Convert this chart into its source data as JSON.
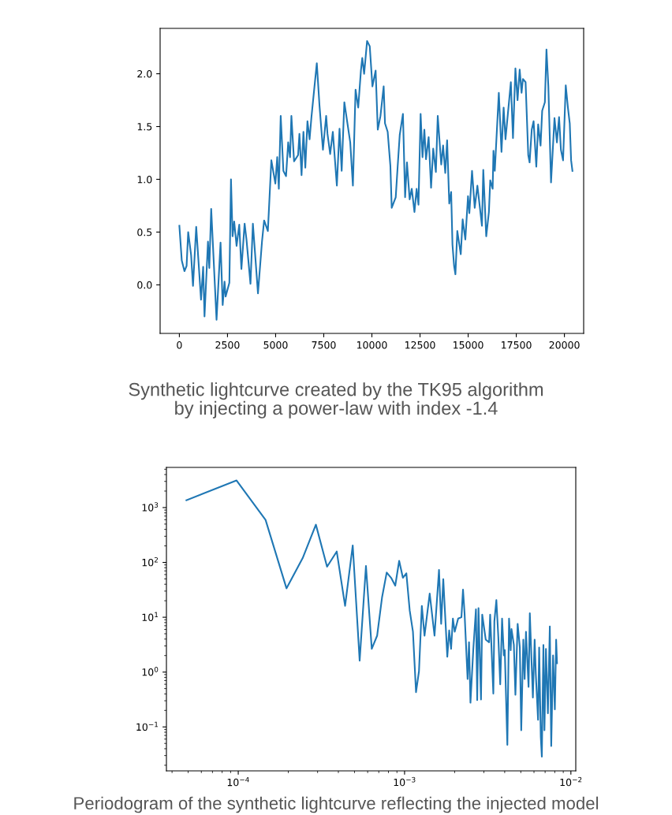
{
  "chart_data": [
    {
      "type": "line",
      "color": "#1f77b4",
      "x": [
        0,
        125,
        264,
        375,
        458,
        611,
        708,
        875,
        1125,
        1236,
        1306,
        1486,
        1556,
        1653,
        1931,
        2139,
        2250,
        2347,
        2403,
        2597,
        2681,
        2764,
        2847,
        2972,
        3111,
        3222,
        3389,
        3486,
        3694,
        3819,
        4083,
        4292,
        4403,
        4597,
        4778,
        4986,
        5083,
        5167,
        5264,
        5403,
        5542,
        5653,
        5750,
        5819,
        5958,
        6167,
        6236,
        6347,
        6444,
        6542,
        6653,
        6764,
        6861,
        6931,
        7139,
        7278,
        7458,
        7625,
        7694,
        7833,
        7972,
        8181,
        8319,
        8431,
        8569,
        8875,
        9014,
        9152,
        9290,
        9430,
        9500,
        9597,
        9750,
        9889,
        10028,
        10195,
        10306,
        10445,
        10612,
        10681,
        10820,
        10960,
        11030,
        11238,
        11335,
        11446,
        11613,
        11725,
        11822,
        11961,
        12072,
        12211,
        12323,
        12420,
        12531,
        12629,
        12726,
        12810,
        12949,
        13074,
        13185,
        13324,
        13421,
        13602,
        13699,
        13811,
        13908,
        14019,
        14117,
        14186,
        14270,
        14339,
        14437,
        14617,
        14715,
        14854,
        14993,
        15063,
        15202,
        15341,
        15480,
        15717,
        15786,
        15939,
        16078,
        16147,
        16273,
        16315,
        16384,
        16593,
        16732,
        16843,
        16940,
        17079,
        17218,
        17329,
        17455,
        17566,
        17677,
        17775,
        17844,
        17983,
        18122,
        18192,
        18303,
        18400,
        18540,
        18637,
        18762,
        18846,
        18985,
        19068,
        19166,
        19305,
        19485,
        19611,
        19722,
        19819,
        19930,
        20070,
        20181,
        20278,
        20348,
        20417
      ],
      "values": [
        0.56,
        0.23,
        0.13,
        0.18,
        0.5,
        0.28,
        -0.01,
        0.55,
        -0.14,
        0.17,
        -0.3,
        0.41,
        0.16,
        0.72,
        -0.33,
        0.4,
        -0.19,
        0.03,
        -0.11,
        0.02,
        1.0,
        0.46,
        0.6,
        0.37,
        0.57,
        0.15,
        0.58,
        0.43,
        0.01,
        0.58,
        -0.08,
        0.41,
        0.61,
        0.51,
        1.18,
        0.96,
        1.21,
        0.91,
        1.6,
        1.08,
        1.03,
        1.35,
        1.21,
        1.6,
        1.17,
        1.23,
        1.43,
        1.04,
        1.45,
        1.11,
        1.55,
        1.38,
        1.59,
        1.72,
        2.1,
        1.7,
        1.28,
        1.6,
        1.43,
        1.24,
        1.45,
        0.94,
        1.48,
        1.08,
        1.73,
        1.35,
        0.94,
        1.85,
        1.68,
        2.03,
        2.15,
        2.0,
        2.31,
        2.26,
        1.88,
        2.03,
        1.47,
        1.6,
        1.88,
        1.53,
        1.45,
        1.13,
        0.73,
        0.83,
        1.11,
        1.42,
        1.62,
        0.83,
        1.16,
        0.81,
        0.91,
        0.69,
        0.91,
        0.76,
        1.62,
        1.21,
        1.47,
        1.19,
        1.4,
        0.92,
        1.29,
        1.07,
        1.6,
        1.14,
        1.32,
        1.06,
        1.37,
        0.77,
        0.88,
        0.38,
        0.18,
        0.1,
        0.51,
        0.29,
        0.62,
        0.43,
        0.84,
        0.68,
        1.08,
        0.73,
        0.94,
        0.56,
        1.09,
        0.46,
        0.69,
        0.99,
        0.91,
        1.27,
        1.08,
        1.82,
        1.26,
        1.68,
        1.38,
        1.65,
        1.92,
        1.39,
        2.05,
        1.75,
        2.04,
        1.82,
        1.95,
        1.92,
        1.23,
        1.16,
        1.47,
        1.55,
        1.12,
        1.52,
        1.32,
        1.65,
        1.73,
        2.23,
        1.88,
        0.97,
        1.58,
        1.35,
        1.59,
        1.28,
        1.18,
        1.89,
        1.68,
        1.53,
        1.18,
        1.08
      ],
      "xlim": [
        -1000,
        21000
      ],
      "ylim": [
        -0.46,
        2.43
      ],
      "xticks": [
        0,
        2500,
        5000,
        7500,
        10000,
        12500,
        15000,
        17500,
        20000
      ],
      "yticks": [
        {
          "value": 0,
          "label": "0.0"
        },
        {
          "value": 0.5,
          "label": "0.5"
        },
        {
          "value": 1,
          "label": "1.0"
        },
        {
          "value": 1.5,
          "label": "1.5"
        },
        {
          "value": 2,
          "label": "2.0"
        }
      ],
      "grid": false,
      "legend": false,
      "annotations": [
        "Synthetic lightcurve created by the TK95 algorithm\nby injecting a power-law with index -1.4"
      ]
    },
    {
      "type": "line",
      "color": "#1f77b4",
      "log": "xy",
      "x": [
        4.88e-05,
        9.77e-05,
        0.000146,
        0.000195,
        0.000244,
        0.000293,
        0.000342,
        0.000391,
        0.000439,
        0.000488,
        0.000537,
        0.000586,
        0.000635,
        0.000684,
        0.000732,
        0.000781,
        0.00083,
        0.000879,
        0.000928,
        0.000977,
        0.001025,
        0.001074,
        0.001123,
        0.001172,
        0.001221,
        0.00127,
        0.001318,
        0.001416,
        0.001514,
        0.001611,
        0.00166,
        0.001709,
        0.001807,
        0.001855,
        0.001904,
        0.001953,
        0.002002,
        0.0021,
        0.002197,
        0.002246,
        0.002295,
        0.002393,
        0.002441,
        0.00249,
        0.002588,
        0.002686,
        0.002734,
        0.002783,
        0.002881,
        0.00293,
        0.003076,
        0.003223,
        0.003271,
        0.003418,
        0.003467,
        0.003564,
        0.003662,
        0.00376,
        0.003857,
        0.003955,
        0.004004,
        0.00415,
        0.004248,
        0.004346,
        0.004395,
        0.004541,
        0.004639,
        0.004785,
        0.004932,
        0.005029,
        0.005176,
        0.005273,
        0.005371,
        0.005566,
        0.005664,
        0.005908,
        0.006055,
        0.006152,
        0.006348,
        0.006445,
        0.006592,
        0.006689,
        0.006836,
        0.006934,
        0.00708,
        0.007275,
        0.007471,
        0.007617,
        0.007813,
        0.008008,
        0.008154,
        0.008252
      ],
      "values": [
        1360,
        3120,
        596,
        33.7,
        120,
        488,
        83.4,
        158,
        16.1,
        204,
        1.62,
        86.1,
        2.65,
        4.61,
        22.9,
        65.3,
        52.4,
        37.7,
        107,
        52.4,
        63.2,
        13.2,
        5.45,
        0.43,
        1.04,
        16.1,
        4.61,
        27.0,
        4.61,
        72.9,
        7.59,
        49.5,
        1.91,
        5.75,
        2.65,
        9.46,
        5.45,
        9.46,
        10.0,
        31.9,
        11.8,
        0.746,
        3.5,
        0.276,
        2.51,
        13.9,
        0.308,
        14.7,
        0.316,
        11.2,
        3.91,
        3.5,
        11.2,
        0.406,
        8.47,
        20.5,
        4.37,
        0.598,
        9.46,
        2.02,
        2.51,
        0.0472,
        9.46,
        2.51,
        6.08,
        3.13,
        0.385,
        7.59,
        2.81,
        0.0867,
        3.91,
        0.746,
        5.45,
        0.536,
        11.8,
        0.344,
        3.91,
        0.931,
        0.135,
        2.81,
        0.0658,
        0.0287,
        3.13,
        0.0867,
        2.65,
        0.177,
        6.79,
        0.0447,
        2.02,
        0.209,
        3.91,
        1.45
      ],
      "xlim": [
        3.7e-05,
        0.0107
      ],
      "ylim": [
        0.0158,
        5400
      ],
      "xticks": [
        {
          "value": 0.0001,
          "label": "10$^{−4}$"
        },
        {
          "value": 0.001,
          "label": "10$^{−3}$"
        },
        {
          "value": 0.01,
          "label": "10$^{−2}$"
        }
      ],
      "yticks": [
        {
          "value": 0.1,
          "label": "10$^{−1}$"
        },
        {
          "value": 1,
          "label": "10$^{0}$"
        },
        {
          "value": 10,
          "label": "10$^{1}$"
        },
        {
          "value": 100,
          "label": "10$^{2}$"
        },
        {
          "value": 1000,
          "label": "10$^{3}$"
        }
      ],
      "grid": false,
      "legend": false,
      "annotations": [
        "Periodogram of the synthetic lightcurve reflecting the injected model"
      ]
    }
  ]
}
